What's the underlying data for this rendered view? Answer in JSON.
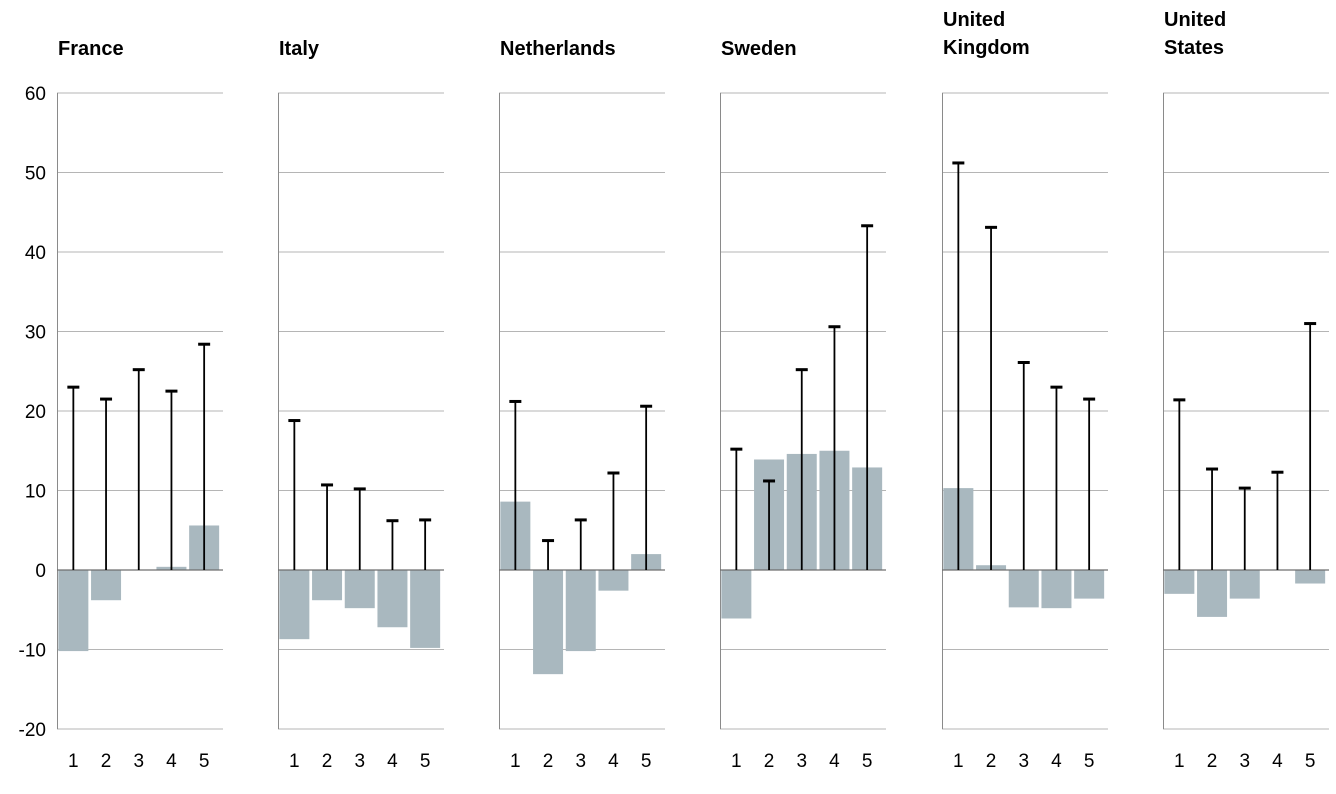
{
  "chart_data": {
    "type": "bar",
    "ylim": [
      -20,
      60
    ],
    "yticks": [
      60,
      50,
      40,
      30,
      20,
      10,
      0,
      -10,
      -20
    ],
    "categories": [
      "1",
      "2",
      "3",
      "4",
      "5"
    ],
    "bar_color": "#a9b8bf",
    "whisker_color": "#000000",
    "grid": true,
    "panels": [
      {
        "title": [
          "France"
        ],
        "values": [
          -10.2,
          -3.8,
          0,
          0.4,
          5.6
        ],
        "whisker_top": [
          23,
          21.5,
          25.2,
          22.5,
          28.4
        ]
      },
      {
        "title": [
          "Italy"
        ],
        "values": [
          -8.7,
          -3.8,
          -4.8,
          -7.2,
          -9.8
        ],
        "whisker_top": [
          18.8,
          10.7,
          10.2,
          6.2,
          6.3
        ]
      },
      {
        "title": [
          "Netherlands"
        ],
        "values": [
          8.6,
          -13.1,
          -10.2,
          -2.6,
          2.0
        ],
        "whisker_top": [
          21.2,
          3.7,
          6.3,
          12.2,
          20.6
        ]
      },
      {
        "title": [
          "Sweden"
        ],
        "values": [
          -6.1,
          13.9,
          14.6,
          15.0,
          12.9
        ],
        "whisker_top": [
          15.2,
          11.2,
          25.2,
          30.6,
          43.3
        ]
      },
      {
        "title": [
          "United",
          "Kingdom"
        ],
        "values": [
          10.3,
          0.6,
          -4.7,
          -4.8,
          -3.6
        ],
        "whisker_top": [
          51.2,
          43.1,
          26.1,
          23.0,
          21.5
        ]
      },
      {
        "title": [
          "United",
          "States"
        ],
        "values": [
          -3.0,
          -5.9,
          -3.6,
          0,
          -1.7
        ],
        "whisker_top": [
          21.4,
          12.7,
          10.3,
          12.3,
          31.0
        ]
      }
    ]
  }
}
